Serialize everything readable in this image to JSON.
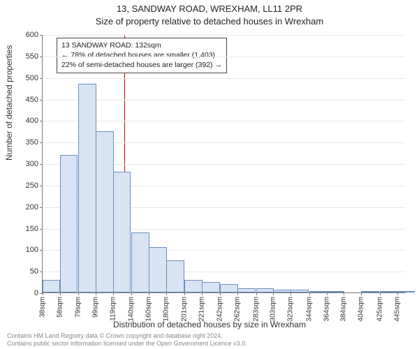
{
  "title_line1": "13, SANDWAY ROAD, WREXHAM, LL11 2PR",
  "title_line2": "Size of property relative to detached houses in Wrexham",
  "chart": {
    "type": "histogram",
    "ylabel": "Number of detached properties",
    "xlabel": "Distribution of detached houses by size in Wrexham",
    "ylim": [
      0,
      600
    ],
    "ytick_step": 50,
    "yticks": [
      0,
      50,
      100,
      150,
      200,
      250,
      300,
      350,
      400,
      450,
      500,
      550,
      600
    ],
    "xtick_labels": [
      "38sqm",
      "58sqm",
      "79sqm",
      "99sqm",
      "119sqm",
      "140sqm",
      "160sqm",
      "180sqm",
      "201sqm",
      "221sqm",
      "242sqm",
      "262sqm",
      "283sqm",
      "303sqm",
      "323sqm",
      "344sqm",
      "364sqm",
      "384sqm",
      "404sqm",
      "425sqm",
      "445sqm"
    ],
    "xtick_values": [
      38,
      58,
      79,
      99,
      119,
      140,
      160,
      180,
      201,
      221,
      242,
      262,
      283,
      303,
      323,
      344,
      364,
      384,
      404,
      425,
      445
    ],
    "x_bin_width_sqm": 20.4,
    "xlim": [
      38,
      455
    ],
    "bars": [
      {
        "x_start": 38,
        "value": 30
      },
      {
        "x_start": 58,
        "value": 320
      },
      {
        "x_start": 79,
        "value": 485
      },
      {
        "x_start": 99,
        "value": 375
      },
      {
        "x_start": 119,
        "value": 280
      },
      {
        "x_start": 140,
        "value": 140
      },
      {
        "x_start": 160,
        "value": 105
      },
      {
        "x_start": 180,
        "value": 75
      },
      {
        "x_start": 201,
        "value": 30
      },
      {
        "x_start": 221,
        "value": 25
      },
      {
        "x_start": 242,
        "value": 20
      },
      {
        "x_start": 262,
        "value": 10
      },
      {
        "x_start": 283,
        "value": 10
      },
      {
        "x_start": 303,
        "value": 6
      },
      {
        "x_start": 323,
        "value": 6
      },
      {
        "x_start": 344,
        "value": 4
      },
      {
        "x_start": 364,
        "value": 2
      },
      {
        "x_start": 384,
        "value": 0
      },
      {
        "x_start": 404,
        "value": 2
      },
      {
        "x_start": 425,
        "value": 4
      },
      {
        "x_start": 445,
        "value": 2
      }
    ],
    "bar_fill": "#d8e3f3",
    "bar_stroke": "#6a8fbf",
    "background_color": "#ffffff",
    "grid_color": "#e9e9e9",
    "axis_color": "#777777",
    "reference_line": {
      "x_value_sqm": 132,
      "color": "#cc0000"
    },
    "annotation": {
      "lines": [
        "13 SANDWAY ROAD: 132sqm",
        "← 78% of detached houses are smaller (1,403)",
        "22% of semi-detached houses are larger (392) →"
      ],
      "border_color": "#444444",
      "background": "#ffffff",
      "fontsize": 10.5
    },
    "label_fontsize": 12,
    "tick_fontsize": 11,
    "title_fontsize": 13
  },
  "footnote_line1": "Contains HM Land Registry data © Crown copyright and database right 2024.",
  "footnote_line2": "Contains public sector information licensed under the Open Government Licence v3.0."
}
